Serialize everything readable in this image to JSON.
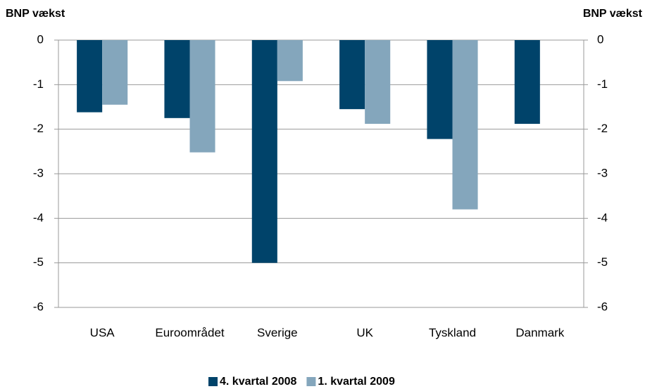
{
  "chart_data": {
    "type": "bar",
    "y_label": "BNP vækst",
    "y2_label": "BNP vækst",
    "categories": [
      "USA",
      "Euroområdet",
      "Sverige",
      "UK",
      "Tyskland",
      "Danmark"
    ],
    "series": [
      {
        "name": "4. kvartal 2008",
        "color": "#00436a",
        "values": [
          -1.62,
          -1.75,
          -5.0,
          -1.55,
          -2.22,
          -1.88
        ]
      },
      {
        "name": "1. kvartal 2009",
        "color": "#84a6bc",
        "values": [
          -1.45,
          -2.52,
          -0.92,
          -1.88,
          -3.8,
          null
        ]
      }
    ],
    "ylim": [
      -6,
      0
    ],
    "yticks": [
      0,
      -1,
      -2,
      -3,
      -4,
      -5,
      -6
    ],
    "y2lim": [
      -6,
      0
    ],
    "y2ticks": [
      0,
      -1,
      -2,
      -3,
      -4,
      -5,
      -6
    ],
    "grid": true,
    "legend": "bottom"
  }
}
